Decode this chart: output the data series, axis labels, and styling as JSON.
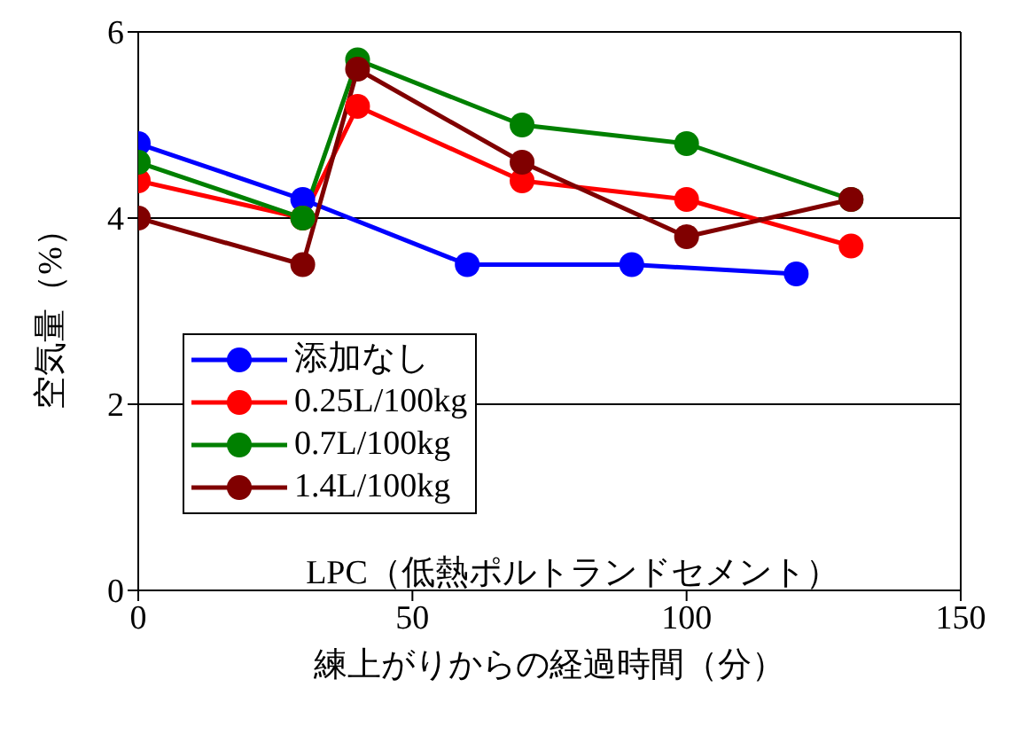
{
  "chart_data": {
    "type": "line",
    "xlabel": "練上がりからの経過時間（分）",
    "ylabel": "空気量（%）",
    "annotations": [
      "LPC（低熱ポルトランドセメント）"
    ],
    "xlim": [
      0,
      150
    ],
    "xticks": [
      0,
      50,
      100,
      150
    ],
    "ylim": [
      0,
      6
    ],
    "yticks": [
      0,
      2,
      4,
      6
    ],
    "grid": "y",
    "legend": "bottom left",
    "marker": "circle",
    "line_style": "solid",
    "series": [
      {
        "name": "添加なし",
        "color": "#0000ff",
        "x": [
          0,
          30,
          60,
          90,
          120
        ],
        "values": [
          4.8,
          4.2,
          3.5,
          3.5,
          3.4
        ]
      },
      {
        "name": "0.25L/100kg",
        "color": "#ff0000",
        "x": [
          0,
          30,
          40,
          70,
          100,
          130
        ],
        "values": [
          4.4,
          4.0,
          5.2,
          4.4,
          4.2,
          3.7
        ]
      },
      {
        "name": "0.7L/100kg",
        "color": "#008000",
        "x": [
          0,
          30,
          40,
          70,
          100,
          130
        ],
        "values": [
          4.6,
          4.0,
          5.7,
          5.0,
          4.8,
          4.2
        ]
      },
      {
        "name": "1.4L/100kg",
        "color": "#800000",
        "x": [
          0,
          30,
          40,
          70,
          100,
          130
        ],
        "values": [
          4.0,
          3.5,
          5.6,
          4.6,
          3.8,
          4.2
        ]
      }
    ]
  }
}
